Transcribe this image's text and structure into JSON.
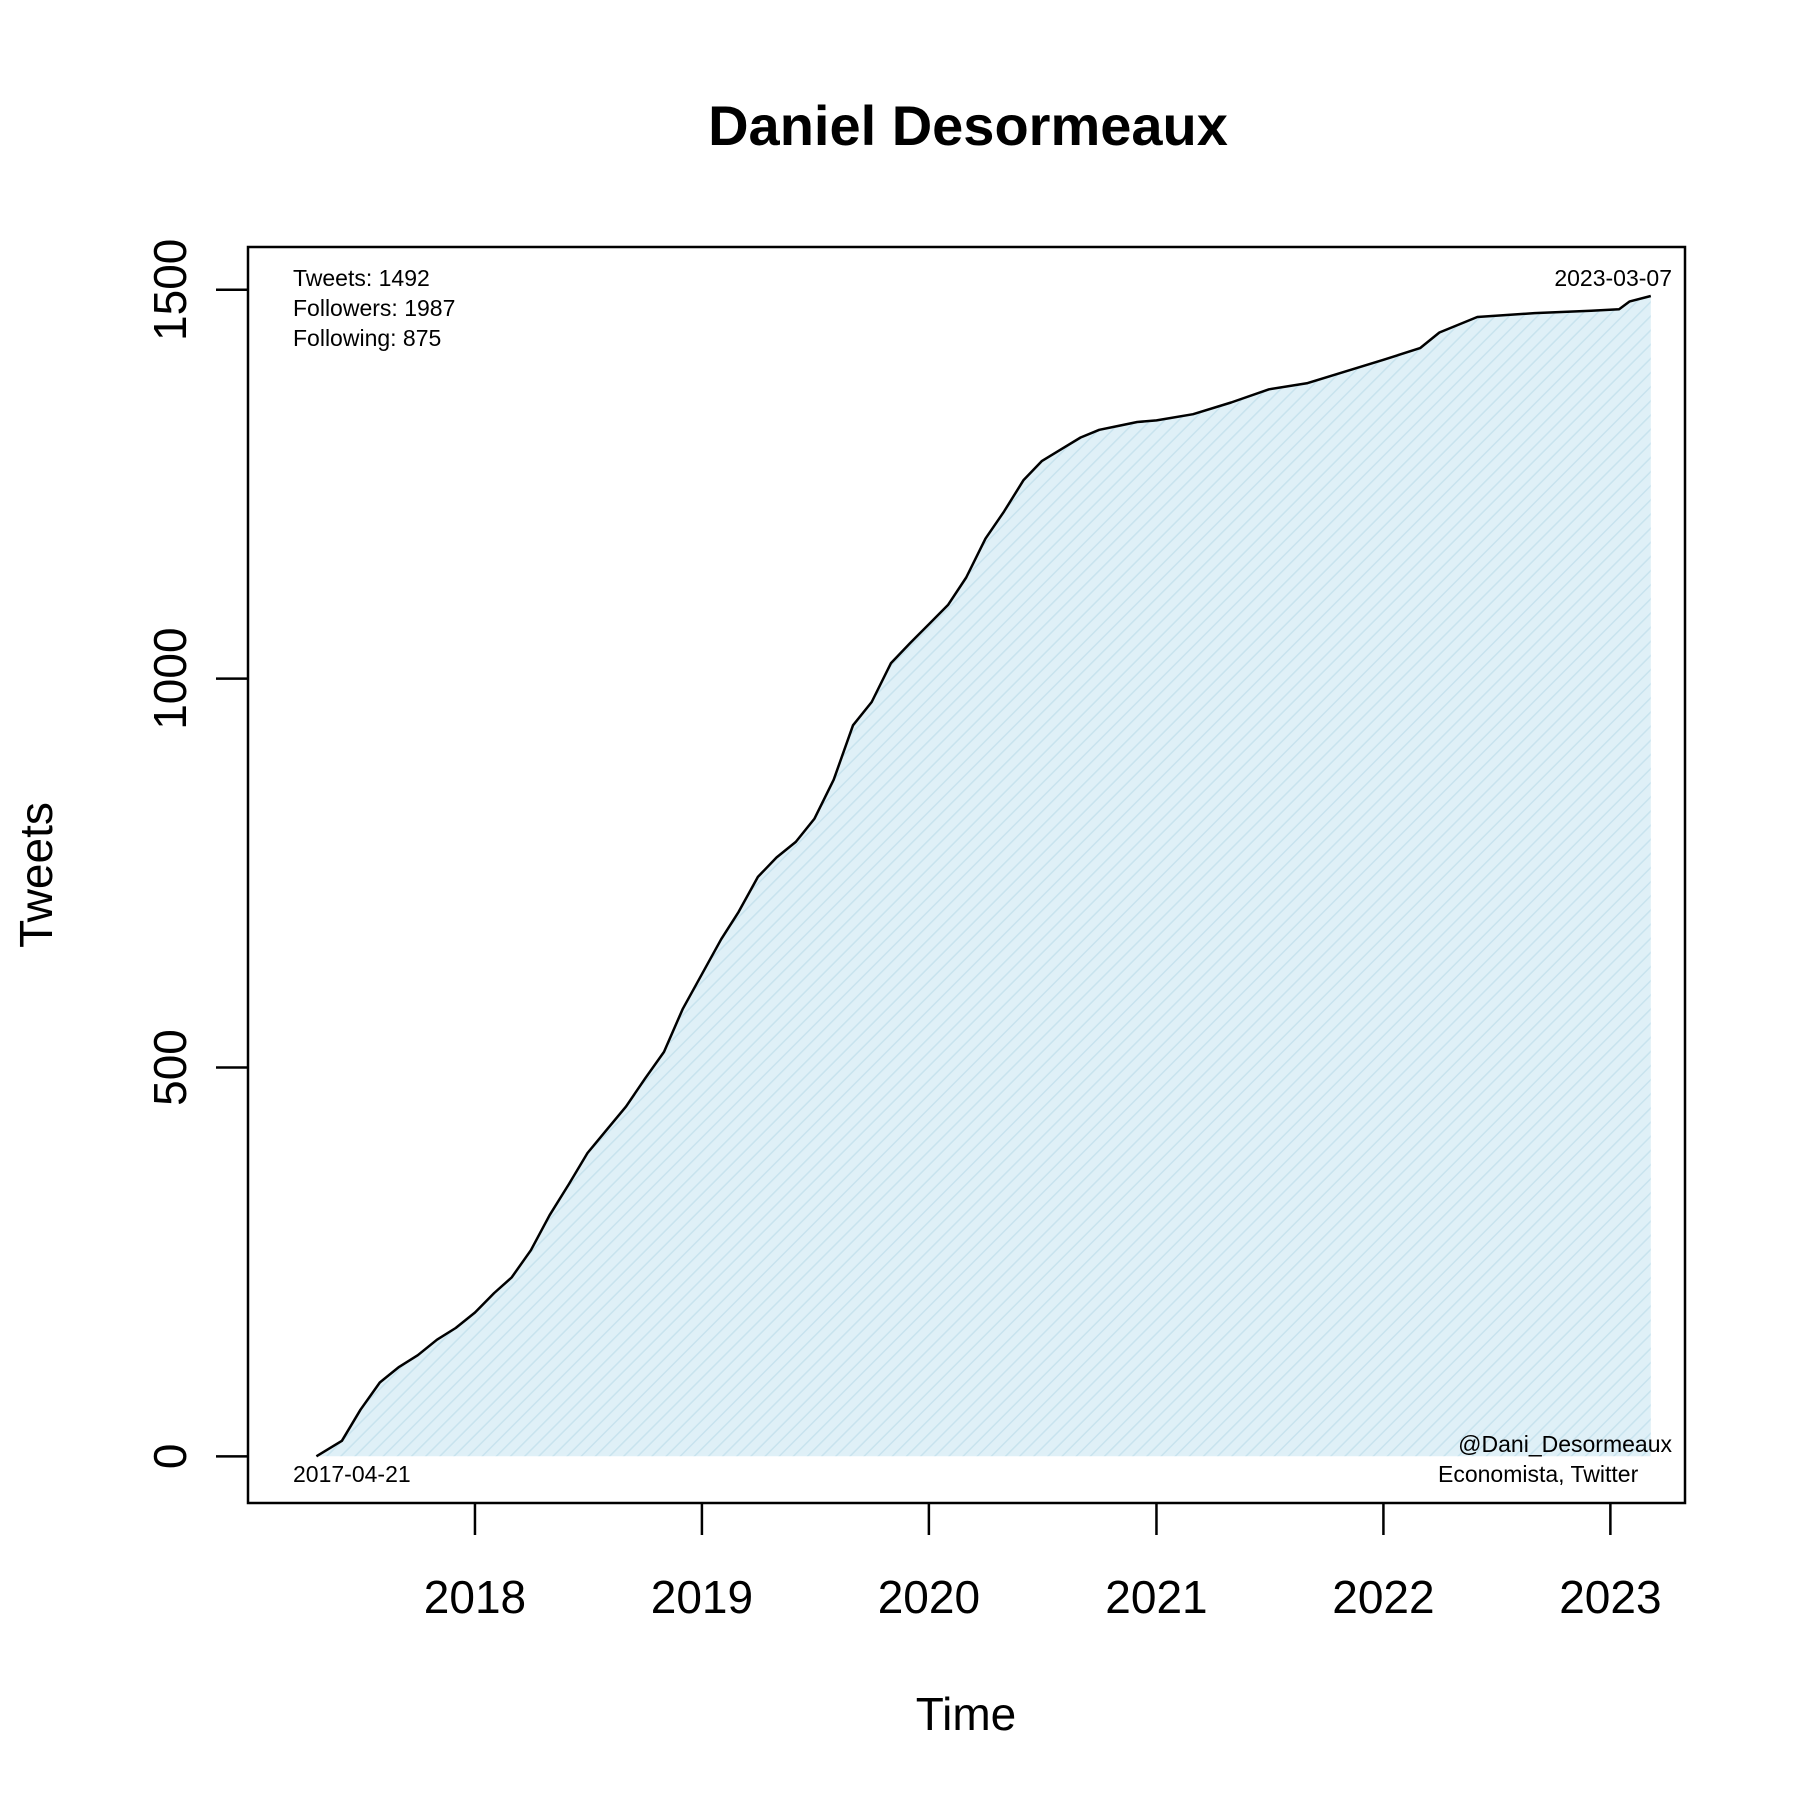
{
  "chart_data": {
    "type": "area",
    "title": "Daniel Desormeaux",
    "xlabel": "Time",
    "ylabel": "Tweets",
    "xlim": [
      "2017-01-01",
      "2023-05-01"
    ],
    "ylim": [
      -60,
      1555
    ],
    "x_ticks": [
      "2018",
      "2019",
      "2020",
      "2021",
      "2022",
      "2023"
    ],
    "y_ticks": [
      0,
      500,
      1000,
      1500
    ],
    "grid": false,
    "colors": {
      "line": "#000000",
      "fill": "#dff0f7",
      "fill_hatch": "#c8e3ee"
    },
    "annotations": {
      "stats": [
        "Tweets: 1492",
        "Followers: 1987",
        "Following: 875"
      ],
      "start_date": "2017-04-21",
      "end_date": "2023-03-07",
      "handle": "@Dani_Desormeaux",
      "bio": "Economista, Twitter"
    },
    "series": [
      {
        "x": [
          "2017-04-21",
          "2017-06-01",
          "2017-07-01",
          "2017-08-01",
          "2017-09-01",
          "2017-10-01",
          "2017-11-01",
          "2017-12-01",
          "2018-01-01",
          "2018-02-01",
          "2018-03-01",
          "2018-04-01",
          "2018-05-01",
          "2018-06-01",
          "2018-07-01",
          "2018-08-01",
          "2018-09-01",
          "2018-10-01",
          "2018-11-01",
          "2018-12-01",
          "2019-01-01",
          "2019-02-01",
          "2019-03-01",
          "2019-04-01",
          "2019-05-01",
          "2019-06-01",
          "2019-07-01",
          "2019-08-01",
          "2019-09-01",
          "2019-10-01",
          "2019-11-01",
          "2019-12-01",
          "2020-01-01",
          "2020-02-01",
          "2020-03-01",
          "2020-04-01",
          "2020-05-01",
          "2020-06-01",
          "2020-07-01",
          "2020-08-01",
          "2020-09-01",
          "2020-10-01",
          "2020-11-01",
          "2020-12-01",
          "2021-01-01",
          "2021-03-01",
          "2021-05-01",
          "2021-07-01",
          "2021-09-01",
          "2021-11-01",
          "2022-01-01",
          "2022-03-01",
          "2022-04-01",
          "2022-06-01",
          "2022-09-01",
          "2022-12-01",
          "2023-01-15",
          "2023-02-01",
          "2023-03-07"
        ],
        "values": [
          0,
          20,
          60,
          95,
          115,
          130,
          150,
          165,
          185,
          210,
          230,
          265,
          310,
          350,
          390,
          420,
          450,
          485,
          520,
          575,
          620,
          665,
          700,
          745,
          770,
          790,
          820,
          870,
          940,
          970,
          1020,
          1045,
          1070,
          1095,
          1130,
          1180,
          1215,
          1255,
          1280,
          1295,
          1310,
          1320,
          1325,
          1330,
          1332,
          1340,
          1355,
          1372,
          1380,
          1395,
          1410,
          1425,
          1445,
          1465,
          1470,
          1473,
          1475,
          1485,
          1492
        ]
      }
    ]
  }
}
